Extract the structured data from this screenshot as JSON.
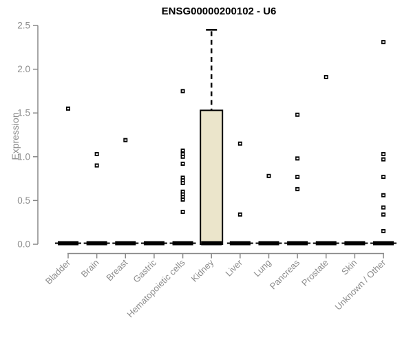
{
  "page_title": "ENSG00000200102 - U6",
  "chart_data": {
    "type": "boxplot",
    "title": "ENSG00000200102 - U6",
    "xlabel": "",
    "ylabel": "Expression",
    "ylim": [
      0.0,
      2.5
    ],
    "ytick_labels": [
      "0.0",
      "0.5",
      "1.0",
      "1.5",
      "2.0",
      "2.5"
    ],
    "grid": false,
    "legend": false,
    "categories": [
      "Bladder",
      "Brain",
      "Breast",
      "Gastric",
      "Hematopoietic cells",
      "Kidney",
      "Liver",
      "Lung",
      "Pancreas",
      "Prostate",
      "Skin",
      "Unknown / Other"
    ],
    "series": [
      {
        "category": "Bladder",
        "whisker_low": 0,
        "q1": 0,
        "median": 0,
        "q3": 0,
        "whisker_high": 0,
        "outliers": [
          1.55
        ]
      },
      {
        "category": "Brain",
        "whisker_low": 0,
        "q1": 0,
        "median": 0,
        "q3": 0,
        "whisker_high": 0,
        "outliers": [
          1.03,
          0.9
        ]
      },
      {
        "category": "Breast",
        "whisker_low": 0,
        "q1": 0,
        "median": 0,
        "q3": 0,
        "whisker_high": 0,
        "outliers": [
          1.19
        ]
      },
      {
        "category": "Gastric",
        "whisker_low": 0,
        "q1": 0,
        "median": 0,
        "q3": 0,
        "whisker_high": 0,
        "outliers": []
      },
      {
        "category": "Hematopoietic cells",
        "whisker_low": 0,
        "q1": 0,
        "median": 0,
        "q3": 0,
        "whisker_high": 0,
        "outliers": [
          1.75,
          1.07,
          1.03,
          1.0,
          0.92,
          0.76,
          0.73,
          0.7,
          0.6,
          0.57,
          0.54,
          0.51,
          0.37
        ]
      },
      {
        "category": "Kidney",
        "whisker_low": 0,
        "q1": 0,
        "median": 0,
        "q3": 1.53,
        "whisker_high": 2.45,
        "outliers": []
      },
      {
        "category": "Liver",
        "whisker_low": 0,
        "q1": 0,
        "median": 0,
        "q3": 0,
        "whisker_high": 0,
        "outliers": [
          1.15,
          0.34
        ]
      },
      {
        "category": "Lung",
        "whisker_low": 0,
        "q1": 0,
        "median": 0,
        "q3": 0,
        "whisker_high": 0,
        "outliers": [
          0.78
        ]
      },
      {
        "category": "Pancreas",
        "whisker_low": 0,
        "q1": 0,
        "median": 0,
        "q3": 0,
        "whisker_high": 0,
        "outliers": [
          1.48,
          0.98,
          0.77,
          0.63
        ]
      },
      {
        "category": "Prostate",
        "whisker_low": 0,
        "q1": 0,
        "median": 0,
        "q3": 0,
        "whisker_high": 0,
        "outliers": [
          1.91
        ]
      },
      {
        "category": "Skin",
        "whisker_low": 0,
        "q1": 0,
        "median": 0,
        "q3": 0,
        "whisker_high": 0,
        "outliers": []
      },
      {
        "category": "Unknown / Other",
        "whisker_low": 0,
        "q1": 0,
        "median": 0,
        "q3": 0,
        "whisker_high": 0,
        "outliers": [
          2.31,
          1.03,
          0.97,
          0.77,
          0.56,
          0.42,
          0.34,
          0.15
        ]
      }
    ],
    "colors": {
      "box_fill": "#ebe5cb",
      "box_border": "#000000",
      "median": "#000000",
      "outlier": "#000000",
      "axis_line": "#888888",
      "axis_text": "#8c8c8c",
      "title_text": "#000000",
      "background": "#ffffff"
    }
  }
}
